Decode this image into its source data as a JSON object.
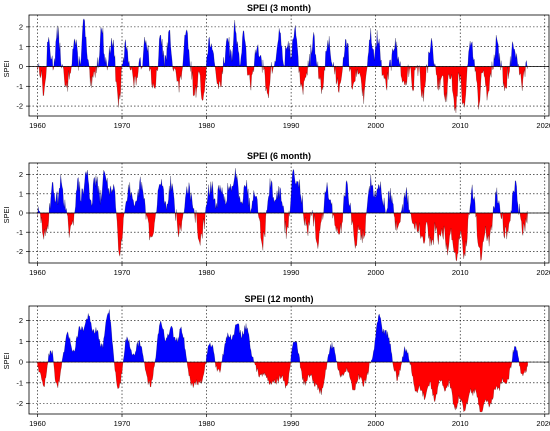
{
  "chart_data": [
    {
      "type": "area",
      "title": "SPEI (3 month)",
      "ylabel": "SPEI",
      "xlabel": "",
      "xlim": [
        1959,
        2020.5
      ],
      "ylim": [
        -2.5,
        2.6
      ],
      "xticks": [
        1960,
        1970,
        1980,
        1990,
        2000,
        2010,
        2020
      ],
      "yticks": [
        -2,
        -1,
        0,
        1,
        2
      ],
      "grid": true,
      "colors": {
        "positive": "#0000ff",
        "negative": "#ff0000",
        "line": "#000000"
      },
      "seed": 13,
      "events": [
        {
          "x": 1960.8,
          "v": -1.4
        },
        {
          "x": 1961.3,
          "v": 1.4
        },
        {
          "x": 1962.4,
          "v": 1.7
        },
        {
          "x": 1963.4,
          "v": -1.2
        },
        {
          "x": 1964.4,
          "v": 1.3
        },
        {
          "x": 1965.5,
          "v": 2.2
        },
        {
          "x": 1966.4,
          "v": -1.0
        },
        {
          "x": 1967.6,
          "v": 1.9
        },
        {
          "x": 1968.8,
          "v": 1.5
        },
        {
          "x": 1969.6,
          "v": -1.8
        },
        {
          "x": 1970.5,
          "v": 1.1
        },
        {
          "x": 1971.5,
          "v": -0.9
        },
        {
          "x": 1972.8,
          "v": 1.6
        },
        {
          "x": 1973.8,
          "v": -1.4
        },
        {
          "x": 1974.6,
          "v": 1.4
        },
        {
          "x": 1975.6,
          "v": 1.6
        },
        {
          "x": 1976.7,
          "v": -1.1
        },
        {
          "x": 1977.6,
          "v": 1.6
        },
        {
          "x": 1978.6,
          "v": -1.4
        },
        {
          "x": 1979.5,
          "v": -1.6
        },
        {
          "x": 1980.4,
          "v": 1.4
        },
        {
          "x": 1981.5,
          "v": -1.1
        },
        {
          "x": 1982.5,
          "v": 1.6
        },
        {
          "x": 1983.4,
          "v": 2.1
        },
        {
          "x": 1984.4,
          "v": 1.5
        },
        {
          "x": 1985.2,
          "v": -1.0
        },
        {
          "x": 1986.0,
          "v": 1.3
        },
        {
          "x": 1987.2,
          "v": -1.5
        },
        {
          "x": 1988.6,
          "v": 1.8
        },
        {
          "x": 1989.6,
          "v": 1.2
        },
        {
          "x": 1990.4,
          "v": 1.9
        },
        {
          "x": 1991.4,
          "v": -1.3
        },
        {
          "x": 1992.6,
          "v": 1.4
        },
        {
          "x": 1993.6,
          "v": -1.2
        },
        {
          "x": 1994.4,
          "v": 1.4
        },
        {
          "x": 1995.6,
          "v": -1.0
        },
        {
          "x": 1996.5,
          "v": 1.4
        },
        {
          "x": 1997.4,
          "v": -1.2
        },
        {
          "x": 1998.6,
          "v": -1.5
        },
        {
          "x": 1999.4,
          "v": 1.7
        },
        {
          "x": 2000.2,
          "v": 1.5
        },
        {
          "x": 2001.2,
          "v": -1.0
        },
        {
          "x": 2002.3,
          "v": 1.3
        },
        {
          "x": 2003.4,
          "v": -1.2
        },
        {
          "x": 2004.4,
          "v": -0.8
        },
        {
          "x": 2005.6,
          "v": -1.6
        },
        {
          "x": 2006.6,
          "v": 1.2
        },
        {
          "x": 2007.4,
          "v": -1.1
        },
        {
          "x": 2008.3,
          "v": -1.6
        },
        {
          "x": 2009.4,
          "v": -2.2
        },
        {
          "x": 2010.4,
          "v": -1.9
        },
        {
          "x": 2011.3,
          "v": 1.1
        },
        {
          "x": 2012.2,
          "v": -1.8
        },
        {
          "x": 2013.2,
          "v": -1.3
        },
        {
          "x": 2014.3,
          "v": 1.2
        },
        {
          "x": 2015.3,
          "v": -1.0
        },
        {
          "x": 2016.3,
          "v": 1.0
        },
        {
          "x": 2017.3,
          "v": -1.0
        }
      ],
      "xrange": [
        1960,
        2018
      ]
    },
    {
      "type": "area",
      "title": "SPEI (6 month)",
      "ylabel": "SPEI",
      "xlabel": "",
      "xlim": [
        1959,
        2020.5
      ],
      "ylim": [
        -2.6,
        2.6
      ],
      "xticks": [
        1960,
        1970,
        1980,
        1990,
        2000,
        2010,
        2020
      ],
      "yticks": [
        -2,
        -1,
        0,
        1,
        2
      ],
      "grid": true,
      "colors": {
        "positive": "#0000ff",
        "negative": "#ff0000",
        "line": "#000000"
      },
      "seed": 29,
      "events": [
        {
          "x": 1960.9,
          "v": -1.3
        },
        {
          "x": 1961.8,
          "v": 1.3
        },
        {
          "x": 1962.8,
          "v": 1.6
        },
        {
          "x": 1963.9,
          "v": -1.1
        },
        {
          "x": 1964.8,
          "v": 1.5
        },
        {
          "x": 1965.8,
          "v": 2.1
        },
        {
          "x": 1966.9,
          "v": 1.8
        },
        {
          "x": 1968.0,
          "v": 2.2
        },
        {
          "x": 1969.0,
          "v": 1.6
        },
        {
          "x": 1969.7,
          "v": -1.9
        },
        {
          "x": 1970.8,
          "v": 1.3
        },
        {
          "x": 1972.2,
          "v": 1.5
        },
        {
          "x": 1973.5,
          "v": -1.4
        },
        {
          "x": 1974.6,
          "v": 1.7
        },
        {
          "x": 1975.8,
          "v": 1.6
        },
        {
          "x": 1976.8,
          "v": -1.0
        },
        {
          "x": 1977.8,
          "v": 1.4
        },
        {
          "x": 1979.3,
          "v": -1.5
        },
        {
          "x": 1980.5,
          "v": 1.5
        },
        {
          "x": 1981.6,
          "v": 1.2
        },
        {
          "x": 1982.6,
          "v": 1.3
        },
        {
          "x": 1983.5,
          "v": 2.1
        },
        {
          "x": 1984.6,
          "v": 1.6
        },
        {
          "x": 1985.8,
          "v": 1.3
        },
        {
          "x": 1986.6,
          "v": -1.6
        },
        {
          "x": 1987.6,
          "v": 1.5
        },
        {
          "x": 1988.6,
          "v": 1.2
        },
        {
          "x": 1989.5,
          "v": -1.0
        },
        {
          "x": 1990.3,
          "v": 2.1
        },
        {
          "x": 1991.0,
          "v": 1.4
        },
        {
          "x": 1991.9,
          "v": -1.0
        },
        {
          "x": 1993.2,
          "v": -1.5
        },
        {
          "x": 1994.3,
          "v": 1.3
        },
        {
          "x": 1995.6,
          "v": -1.2
        },
        {
          "x": 1996.6,
          "v": 1.3
        },
        {
          "x": 1997.6,
          "v": -1.6
        },
        {
          "x": 1998.5,
          "v": -1.2
        },
        {
          "x": 1999.5,
          "v": 1.7
        },
        {
          "x": 2000.5,
          "v": 1.5
        },
        {
          "x": 2001.7,
          "v": 1.0
        },
        {
          "x": 2002.6,
          "v": -1.1
        },
        {
          "x": 2003.6,
          "v": 1.0
        },
        {
          "x": 2004.6,
          "v": -0.9
        },
        {
          "x": 2005.6,
          "v": -1.3
        },
        {
          "x": 2006.6,
          "v": -1.7
        },
        {
          "x": 2007.6,
          "v": -1.4
        },
        {
          "x": 2008.5,
          "v": -1.9
        },
        {
          "x": 2009.5,
          "v": -2.4
        },
        {
          "x": 2010.5,
          "v": -2.0
        },
        {
          "x": 2011.4,
          "v": 1.1
        },
        {
          "x": 2012.4,
          "v": -2.3
        },
        {
          "x": 2013.4,
          "v": -1.4
        },
        {
          "x": 2014.4,
          "v": 1.0
        },
        {
          "x": 2015.4,
          "v": -1.1
        },
        {
          "x": 2016.5,
          "v": 1.3
        },
        {
          "x": 2017.5,
          "v": -0.9
        }
      ],
      "xrange": [
        1960,
        2018
      ]
    },
    {
      "type": "area",
      "title": "SPEI (12 month)",
      "ylabel": "SPEI",
      "xlabel": "",
      "xlim": [
        1959,
        2020.5
      ],
      "ylim": [
        -2.5,
        2.7
      ],
      "xticks": [
        1960,
        1970,
        1980,
        1990,
        2000,
        2010,
        2020
      ],
      "yticks": [
        -2,
        -1,
        0,
        1,
        2
      ],
      "grid": true,
      "colors": {
        "positive": "#0000ff",
        "negative": "#ff0000",
        "line": "#000000"
      },
      "seed": 47,
      "events": [
        {
          "x": 1960.8,
          "v": -1.2
        },
        {
          "x": 1961.6,
          "v": 1.0
        },
        {
          "x": 1962.3,
          "v": -1.3
        },
        {
          "x": 1963.6,
          "v": 1.3
        },
        {
          "x": 1965.0,
          "v": 1.6
        },
        {
          "x": 1966.0,
          "v": 2.1
        },
        {
          "x": 1967.0,
          "v": 1.4
        },
        {
          "x": 1968.4,
          "v": 2.5
        },
        {
          "x": 1969.6,
          "v": -1.3
        },
        {
          "x": 1970.6,
          "v": 1.2
        },
        {
          "x": 1972.0,
          "v": 0.9
        },
        {
          "x": 1973.3,
          "v": -1.1
        },
        {
          "x": 1974.6,
          "v": 1.9
        },
        {
          "x": 1975.8,
          "v": 1.6
        },
        {
          "x": 1977.0,
          "v": 1.6
        },
        {
          "x": 1978.3,
          "v": -1.1
        },
        {
          "x": 1979.3,
          "v": -1.0
        },
        {
          "x": 1980.5,
          "v": 1.0
        },
        {
          "x": 1981.3,
          "v": -0.6
        },
        {
          "x": 1982.5,
          "v": 1.3
        },
        {
          "x": 1983.6,
          "v": 1.8
        },
        {
          "x": 1984.7,
          "v": 1.7
        },
        {
          "x": 1986.3,
          "v": -0.6
        },
        {
          "x": 1987.5,
          "v": -1.0
        },
        {
          "x": 1988.4,
          "v": -0.8
        },
        {
          "x": 1989.5,
          "v": -1.2
        },
        {
          "x": 1990.4,
          "v": 1.2
        },
        {
          "x": 1991.6,
          "v": -1.0
        },
        {
          "x": 1992.8,
          "v": -0.9
        },
        {
          "x": 1993.6,
          "v": -1.3
        },
        {
          "x": 1994.8,
          "v": 0.8
        },
        {
          "x": 1996.0,
          "v": -0.7
        },
        {
          "x": 1997.4,
          "v": -1.3
        },
        {
          "x": 1998.6,
          "v": -1.0
        },
        {
          "x": 2000.4,
          "v": 2.1
        },
        {
          "x": 2001.4,
          "v": 1.3
        },
        {
          "x": 2002.6,
          "v": -0.8
        },
        {
          "x": 2003.5,
          "v": 0.7
        },
        {
          "x": 2004.8,
          "v": -1.3
        },
        {
          "x": 2005.8,
          "v": -1.6
        },
        {
          "x": 2007.0,
          "v": -1.8
        },
        {
          "x": 2008.2,
          "v": -1.3
        },
        {
          "x": 2009.4,
          "v": -2.2
        },
        {
          "x": 2010.5,
          "v": -2.3
        },
        {
          "x": 2011.5,
          "v": -1.3
        },
        {
          "x": 2012.5,
          "v": -2.3
        },
        {
          "x": 2013.5,
          "v": -2.0
        },
        {
          "x": 2014.5,
          "v": -1.2
        },
        {
          "x": 2015.5,
          "v": -0.9
        },
        {
          "x": 2016.6,
          "v": 0.9
        },
        {
          "x": 2017.3,
          "v": -0.8
        }
      ],
      "xrange": [
        1960,
        2018
      ]
    }
  ]
}
